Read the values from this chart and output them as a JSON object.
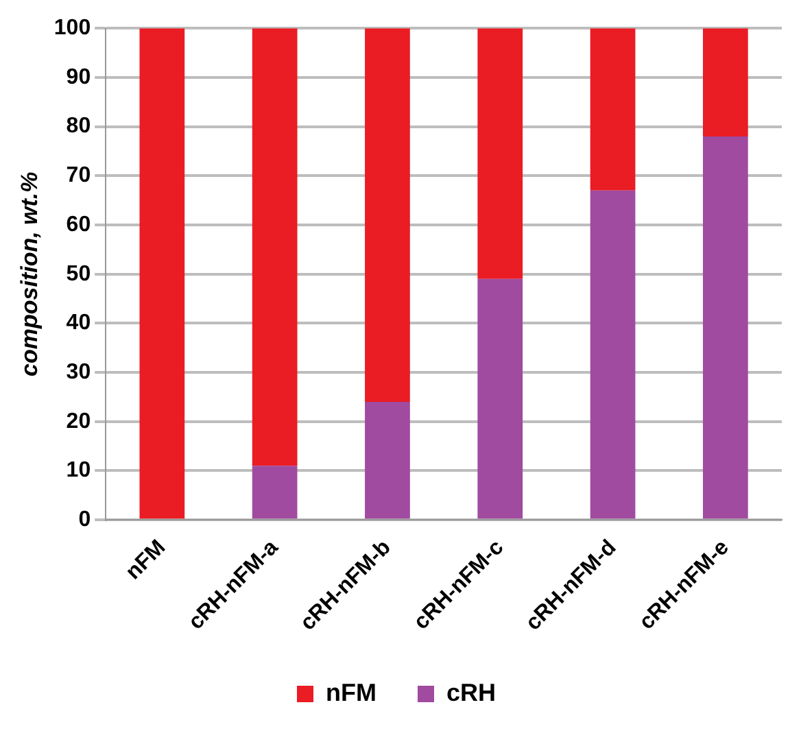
{
  "chart_data": {
    "type": "bar",
    "stacked": true,
    "ylabel": "composition, wt.%",
    "categories": [
      "nFM",
      "cRH-nFM-a",
      "cRH-nFM-b",
      "cRH-nFM-c",
      "cRH-nFM-d",
      "cRH-nFM-e"
    ],
    "series": [
      {
        "name": "cRH",
        "color": "#a04aa0",
        "values": [
          0,
          11,
          24,
          49,
          67,
          78
        ]
      },
      {
        "name": "nFM",
        "color": "#ea1c24",
        "values": [
          100,
          89,
          76,
          51,
          33,
          22
        ]
      }
    ],
    "ylim": [
      0,
      100
    ],
    "yticks": [
      0,
      10,
      20,
      30,
      40,
      50,
      60,
      70,
      80,
      90,
      100
    ],
    "grid": "y",
    "legend": "bottom"
  }
}
